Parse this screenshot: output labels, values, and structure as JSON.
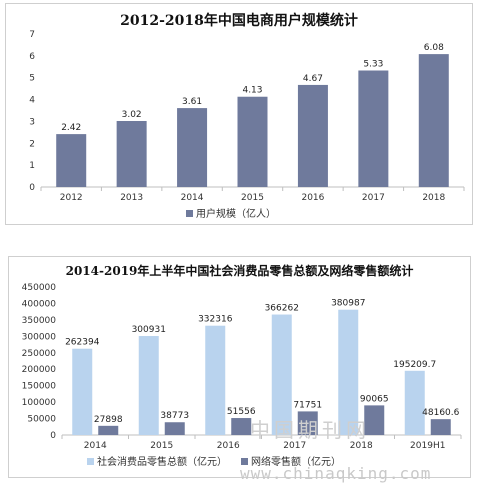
{
  "chart_data": [
    {
      "type": "bar",
      "title": "2012-2018年中国电商用户规模统计",
      "categories": [
        "2012",
        "2013",
        "2014",
        "2015",
        "2016",
        "2017",
        "2018"
      ],
      "series": [
        {
          "name": "用户规模（亿人）",
          "values": [
            2.42,
            3.02,
            3.61,
            4.13,
            4.67,
            5.33,
            6.08
          ],
          "color": "#6f7a9c"
        }
      ],
      "ylim": [
        0,
        7
      ],
      "yticks": [
        0,
        1,
        2,
        3,
        4,
        5,
        6,
        7
      ],
      "data_labels": [
        "2.42",
        "3.02",
        "3.61",
        "4.13",
        "4.67",
        "5.33",
        "6.08"
      ],
      "grid": false,
      "legend": "bottom"
    },
    {
      "type": "bar",
      "title": "2014-2019年上半年中国社会消费品零售总额及网络零售额统计",
      "categories": [
        "2014",
        "2015",
        "2016",
        "2017",
        "2018",
        "2019H1"
      ],
      "series": [
        {
          "name": "社会消费品零售总额（亿元）",
          "values": [
            262394,
            300931,
            332316,
            366262,
            380987,
            195209.7
          ],
          "color": "#b9d3ee"
        },
        {
          "name": "网络零售额（亿元）",
          "values": [
            27898,
            38773,
            51556,
            71751,
            90065,
            48160.6
          ],
          "color": "#6f7a9c"
        }
      ],
      "ylim": [
        0,
        450000
      ],
      "yticks": [
        0,
        50000,
        100000,
        150000,
        200000,
        250000,
        300000,
        350000,
        400000,
        450000
      ],
      "data_labels": [
        [
          "262394",
          "300931",
          "332316",
          "366262",
          "380987",
          "195209.7"
        ],
        [
          "27898",
          "38773",
          "51556",
          "71751",
          "90065",
          "48160.6"
        ]
      ],
      "grid": false,
      "legend": "bottom"
    }
  ],
  "watermarks": {
    "cn": "中国期刊网",
    "url": "www.chinaqking.com"
  }
}
